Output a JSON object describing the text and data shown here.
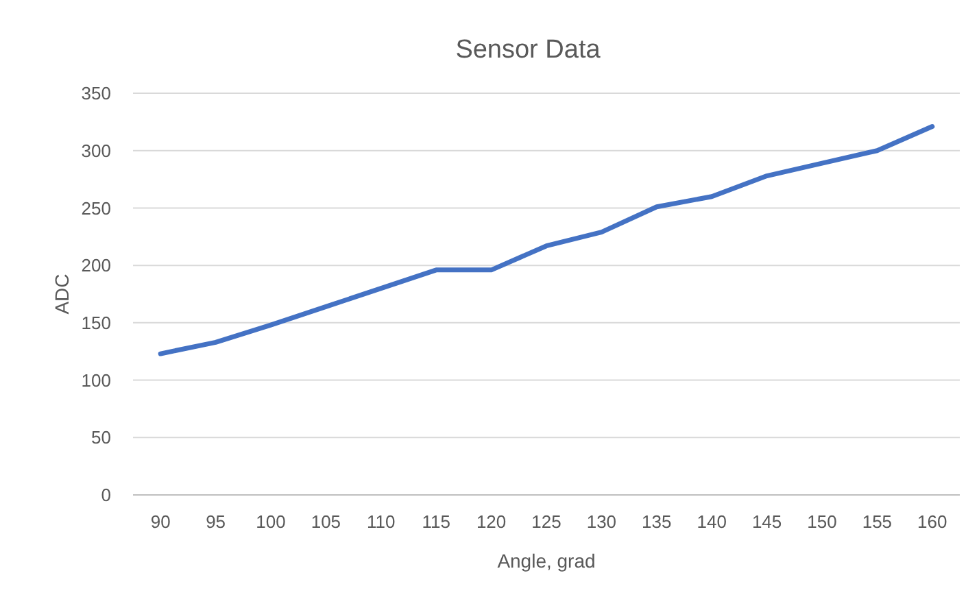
{
  "chart_data": {
    "type": "line",
    "title": "Sensor Data",
    "xlabel": "Angle, grad",
    "ylabel": "ADC",
    "categories": [
      "90",
      "95",
      "100",
      "105",
      "110",
      "115",
      "120",
      "125",
      "130",
      "135",
      "140",
      "145",
      "150",
      "155",
      "160"
    ],
    "series": [
      {
        "color": "#4472c4",
        "values": [
          123,
          133,
          148,
          164,
          180,
          196,
          196,
          217,
          229,
          251,
          260,
          278,
          289,
          300,
          321
        ]
      }
    ],
    "ylim": [
      0,
      350
    ],
    "yticks": [
      0,
      50,
      100,
      150,
      200,
      250,
      300,
      350
    ],
    "grid": "y",
    "marker": "none",
    "line_style": "solid"
  }
}
